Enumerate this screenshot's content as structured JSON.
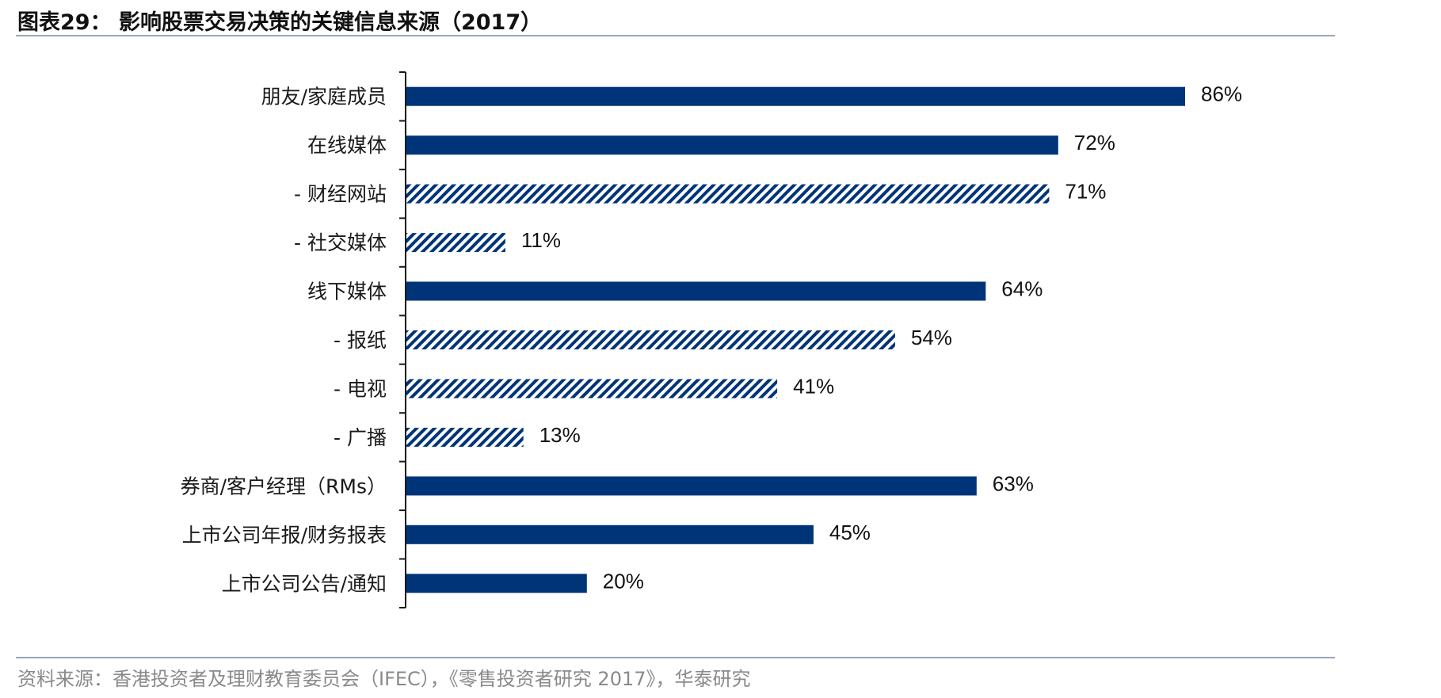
{
  "header": {
    "title": "图表29： 影响股票交易决策的关键信息来源（2017）"
  },
  "footer": {
    "source": "资料来源：香港投资者及理财教育委员会（IFEC），《零售投资者研究 2017》，华泰研究"
  },
  "colors": {
    "bar": "#003478",
    "axis": "#1a1a1a",
    "rule": "#98a6b8"
  },
  "chart_data": {
    "type": "bar",
    "orientation": "horizontal",
    "categories": [
      "朋友/家庭成员",
      "在线媒体",
      "- 财经网站",
      "- 社交媒体",
      "线下媒体",
      "- 报纸",
      "- 电视",
      "- 广播",
      "券商/客户经理（RMs）",
      "上市公司年报/财务报表",
      "上市公司公告/通知"
    ],
    "values": [
      86,
      72,
      71,
      11,
      64,
      54,
      41,
      13,
      63,
      45,
      20
    ],
    "value_labels": [
      "86%",
      "72%",
      "71%",
      "11%",
      "64%",
      "54%",
      "41%",
      "13%",
      "63%",
      "45%",
      "20%"
    ],
    "styles": [
      "solid",
      "solid",
      "hatched",
      "hatched",
      "solid",
      "hatched",
      "hatched",
      "hatched",
      "solid",
      "solid",
      "solid"
    ],
    "unit": "%",
    "xlim": [
      0,
      100
    ],
    "grid": false,
    "legend": "none"
  }
}
